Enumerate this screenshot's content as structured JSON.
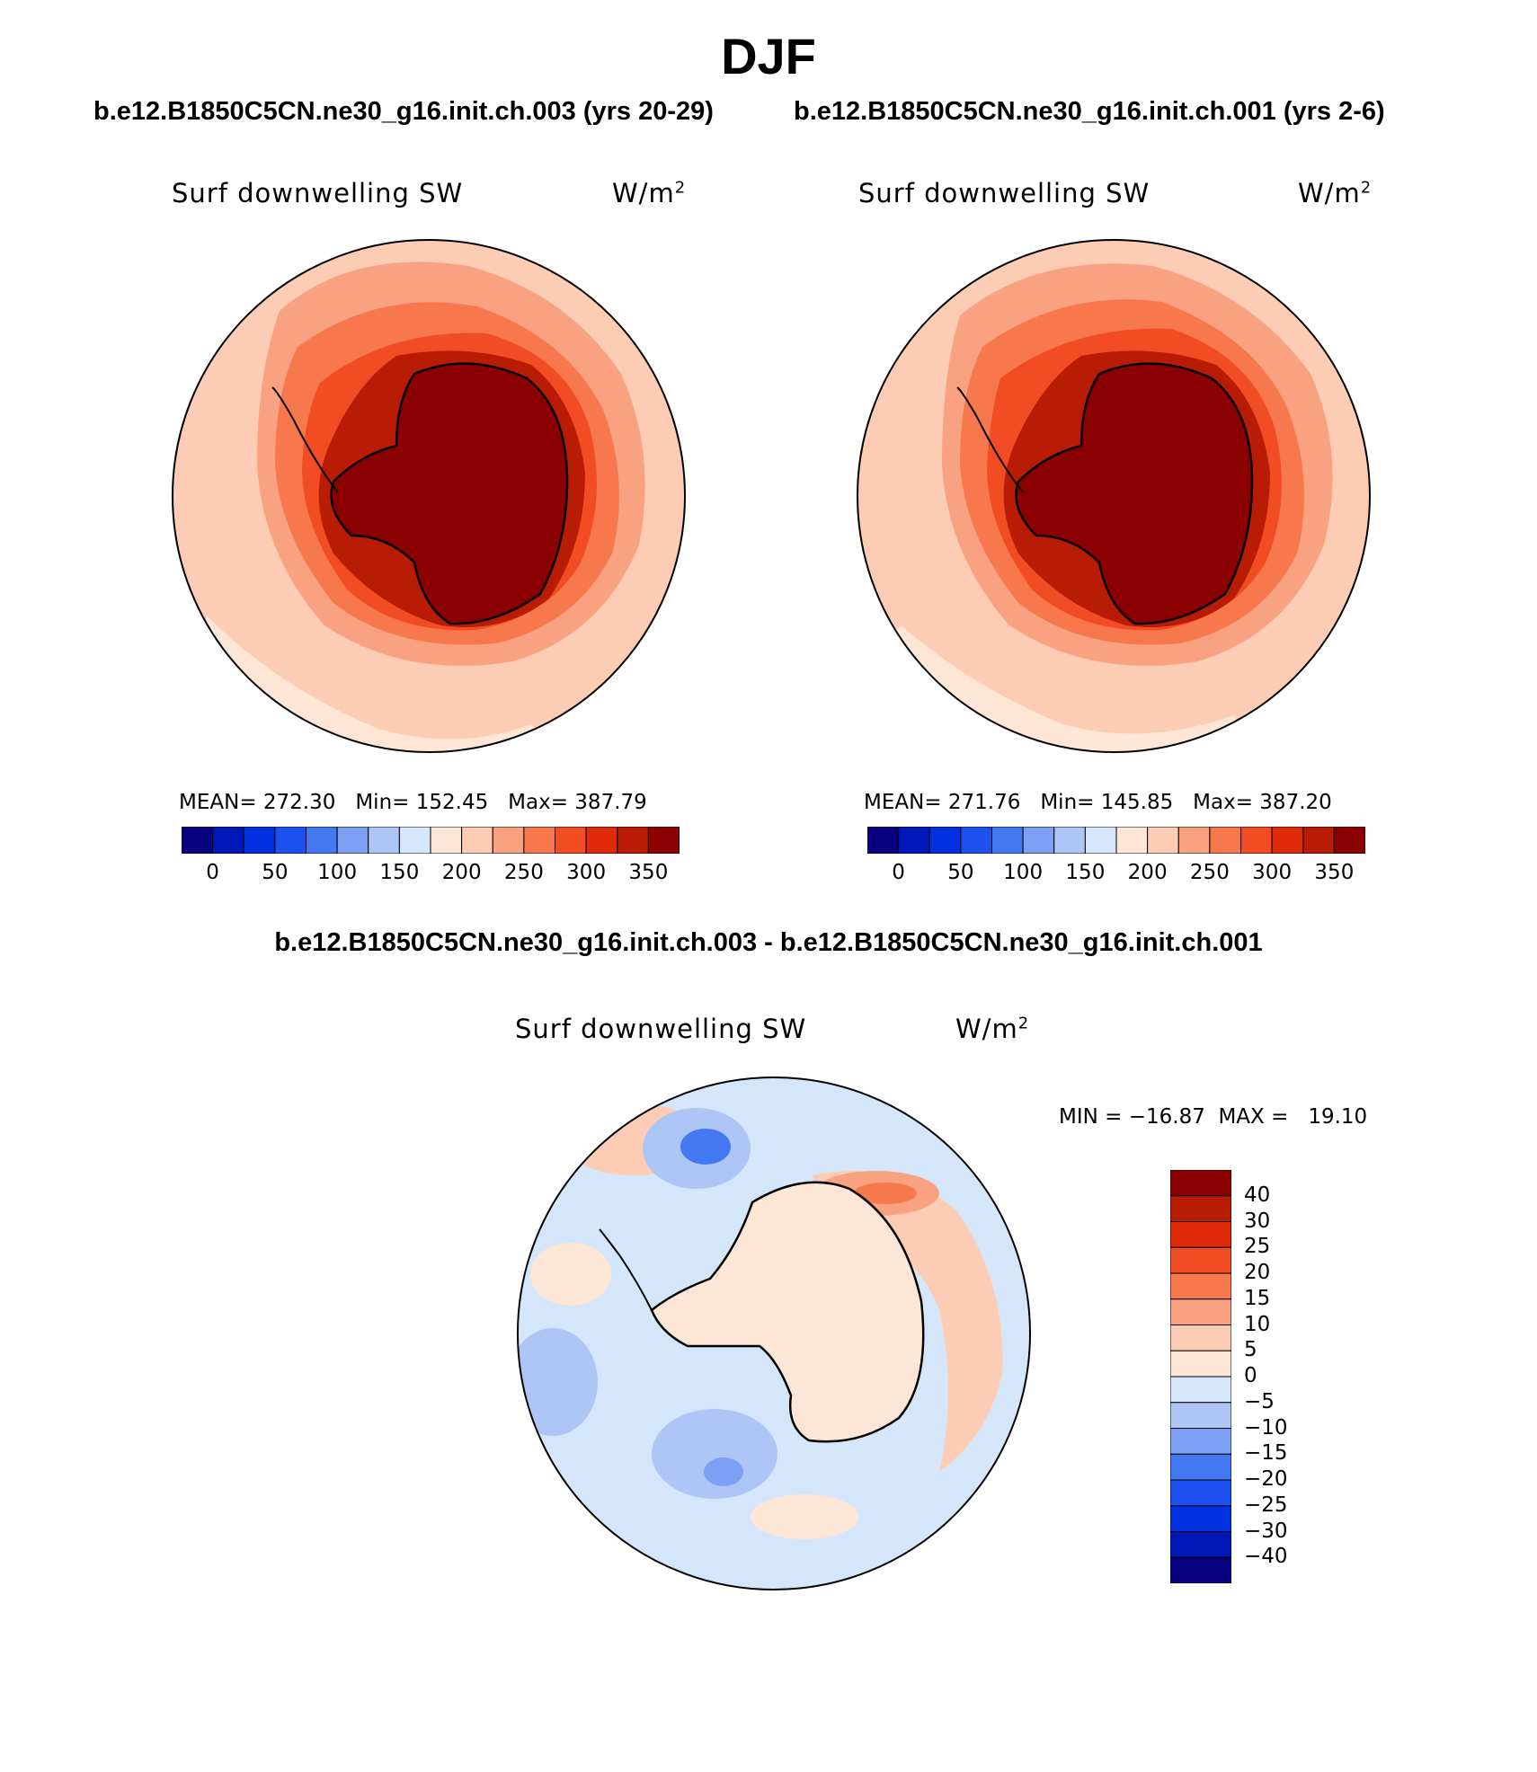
{
  "figure": {
    "title": "DJF",
    "case1_title": "b.e12.B1850C5CN.ne30_g16.init.ch.003 (yrs 20-29)",
    "case2_title": "b.e12.B1850C5CN.ne30_g16.init.ch.001 (yrs 2-6)",
    "diff_title": "b.e12.B1850C5CN.ne30_g16.init.ch.003 - b.e12.B1850C5CN.ne30_g16.init.ch.001"
  },
  "panels": [
    {
      "variable": "Surf downwelling SW",
      "units_base": "W/m",
      "units_exp": "2",
      "mean_label": "MEAN=",
      "mean": "272.30",
      "min_label": "Min=",
      "min": "152.45",
      "max_label": "Max=",
      "max": "387.79"
    },
    {
      "variable": "Surf downwelling SW",
      "units_base": "W/m",
      "units_exp": "2",
      "mean_label": "MEAN=",
      "mean": "271.76",
      "min_label": "Min=",
      "min": "145.85",
      "max_label": "Max=",
      "max": "387.20"
    }
  ],
  "diff_panel": {
    "variable": "Surf downwelling SW",
    "units_base": "W/m",
    "units_exp": "2",
    "minmax_text": "MIN = −16.87  MAX =   19.10"
  },
  "colorbar_abs": {
    "colors": [
      "#08007e",
      "#0018b8",
      "#0030e0",
      "#1e52f0",
      "#4478f0",
      "#7ea0f4",
      "#aec6f6",
      "#d6e6fa",
      "#fde6d6",
      "#fcccb4",
      "#f9a282",
      "#f7784c",
      "#f24c24",
      "#df2a0c",
      "#b81c04",
      "#8b0000"
    ],
    "tick_labels": [
      "0",
      "50",
      "100",
      "150",
      "200",
      "250",
      "300",
      "350"
    ]
  },
  "colorbar_diff": {
    "colors": [
      "#8b0000",
      "#b81c04",
      "#df2a0c",
      "#f24c24",
      "#f7784c",
      "#f9a282",
      "#fcccb4",
      "#fde6d6",
      "#d6e6fa",
      "#aec6f6",
      "#7ea0f4",
      "#4478f0",
      "#1e52f0",
      "#0030e0",
      "#0018b8",
      "#08007e"
    ],
    "tick_labels": [
      "40",
      "30",
      "25",
      "20",
      "15",
      "10",
      "5",
      "0",
      "−5",
      "−10",
      "−15",
      "−20",
      "−25",
      "−30",
      "−40"
    ]
  }
}
